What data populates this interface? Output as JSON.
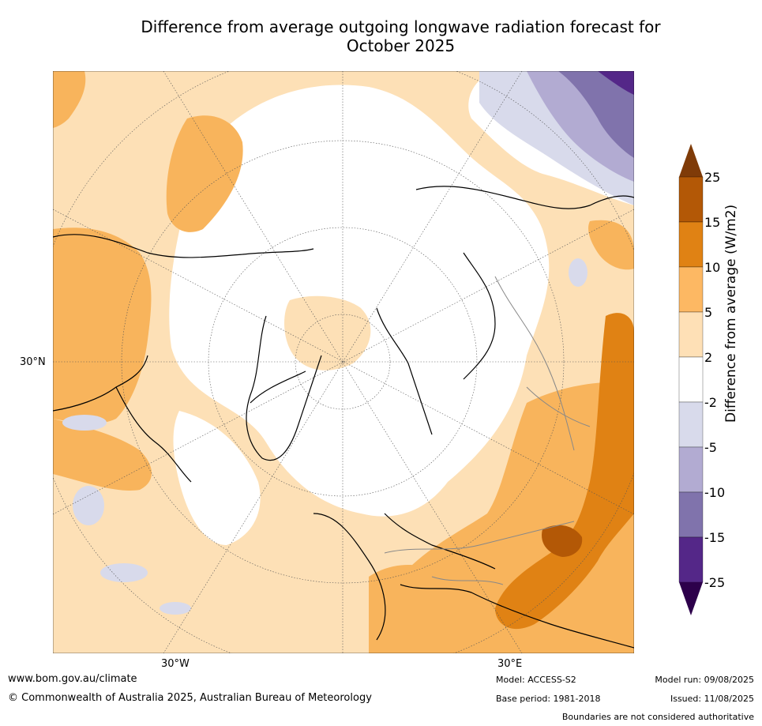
{
  "title": {
    "line1": "Difference from average outgoing longwave radiation forecast for",
    "line2": "October 2025"
  },
  "map": {
    "lat_label": "30°N",
    "lon_labels": [
      "30°W",
      "30°E"
    ],
    "colors": {
      "bg": "#ffffff",
      "light_orange": "#fde0b6",
      "orange": "#f8b45c",
      "dark_orange": "#e08214",
      "brown": "#b35806",
      "light_purple": "#d8daeb",
      "purple": "#b2abd2",
      "dark_purple": "#8073ac",
      "deep_purple": "#542788"
    }
  },
  "colorbar": {
    "label": "Difference from average (W/m2)",
    "ticks": [
      "25",
      "15",
      "10",
      "5",
      "2",
      "-2",
      "-5",
      "-10",
      "-15",
      "-25"
    ],
    "colors": [
      "#7f3b08",
      "#b35806",
      "#e08214",
      "#fdb863",
      "#fee0b6",
      "#ffffff",
      "#d8daeb",
      "#b2abd2",
      "#8073ac",
      "#542788",
      "#2d004b"
    ]
  },
  "footer": {
    "website": "www.bom.gov.au/climate",
    "copyright": "© Commonwealth of Australia 2025, Australian Bureau of Meteorology",
    "model": "Model: ACCESS-S2",
    "base_period": "Base period: 1981-2018",
    "model_run": "Model run: 09/08/2025",
    "issued": "Issued: 11/08/2025",
    "disclaimer": "Boundaries are not considered authoritative"
  }
}
